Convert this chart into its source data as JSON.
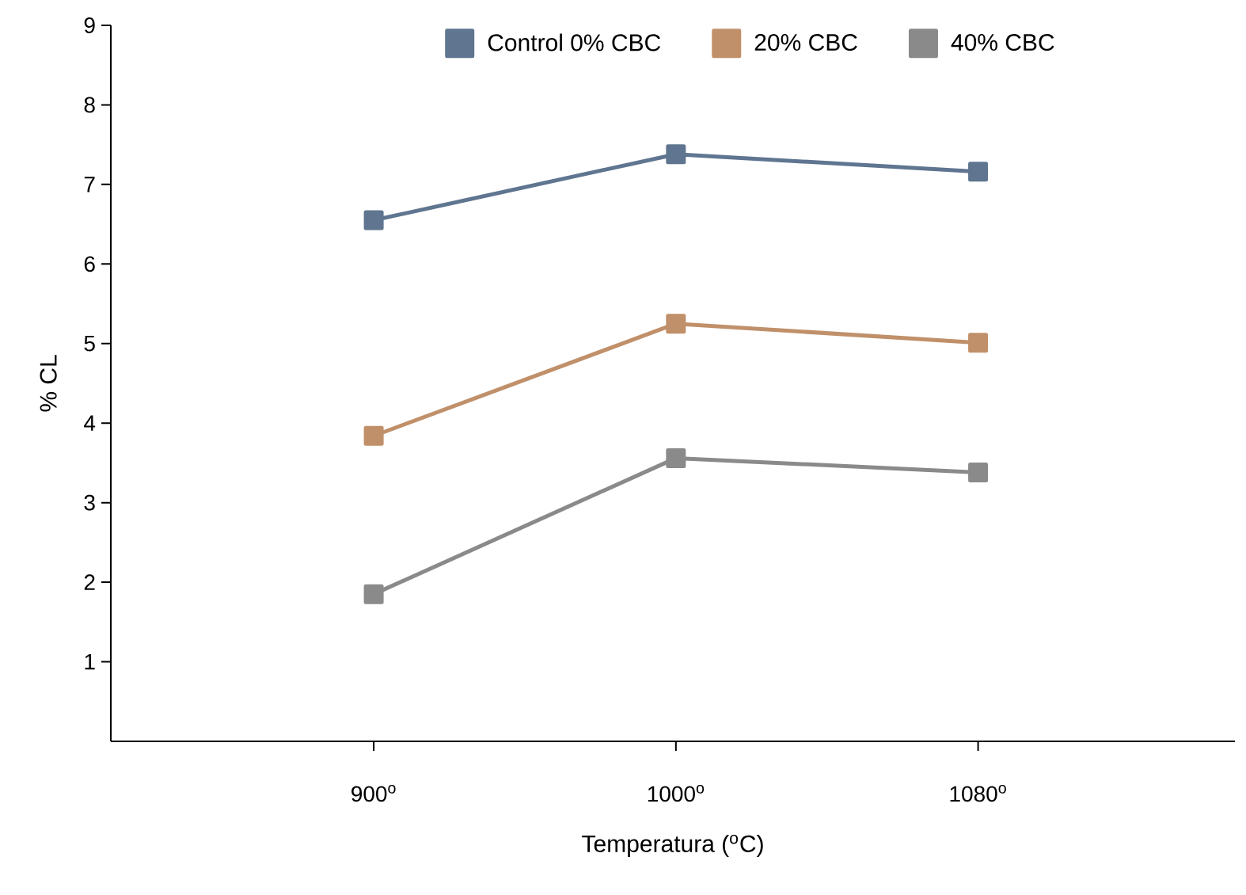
{
  "chart_data": {
    "type": "line",
    "xlabel": "Temperatura ($^{o}$C)",
    "ylabel": "% CL",
    "categories": [
      "900$^{o}$",
      "1000$^{o}$",
      "1080$^{o}$"
    ],
    "series": [
      {
        "name": "Control 0% CBC",
        "color": "#5f7590",
        "values": [
          6.55,
          7.38,
          7.16
        ]
      },
      {
        "name": "20% CBC",
        "color": "#c0906a",
        "values": [
          3.84,
          5.25,
          5.01
        ]
      },
      {
        "name": "40% CBC",
        "color": "#8a8a8a",
        "values": [
          1.85,
          3.56,
          3.38
        ]
      }
    ],
    "ylim": [
      0,
      9
    ],
    "yticks": [
      1,
      2,
      3,
      4,
      5,
      6,
      7,
      8,
      9
    ],
    "marker": "square",
    "line_style": "solid",
    "legend": "top right",
    "grid": false
  }
}
